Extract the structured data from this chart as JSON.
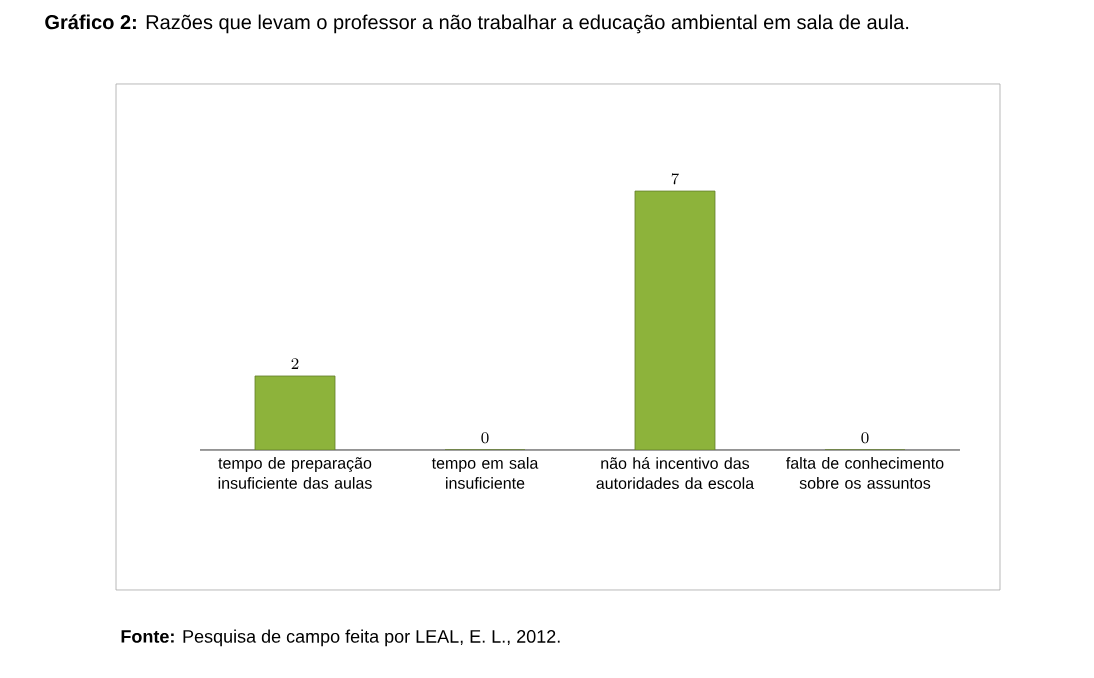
{
  "chart_data": {
    "type": "bar",
    "title": "**Gráfico 2:** Razões que levam o professor a não trabalhar a educação ambiental em sala de aula.",
    "categories": [
      "tempo de preparação insuficiente das aulas",
      "tempo em sala insuficiente",
      "não há incentivo das autoridades da escola",
      "falta de conhecimento sobre os assuntos"
    ],
    "values": [
      2,
      0,
      7,
      0
    ],
    "color": "#8db33b",
    "data_labels": true,
    "annotations": [
      "**Fonte:** Pesquisa de campo feita por LEAL, E. L., 2012."
    ]
  }
}
